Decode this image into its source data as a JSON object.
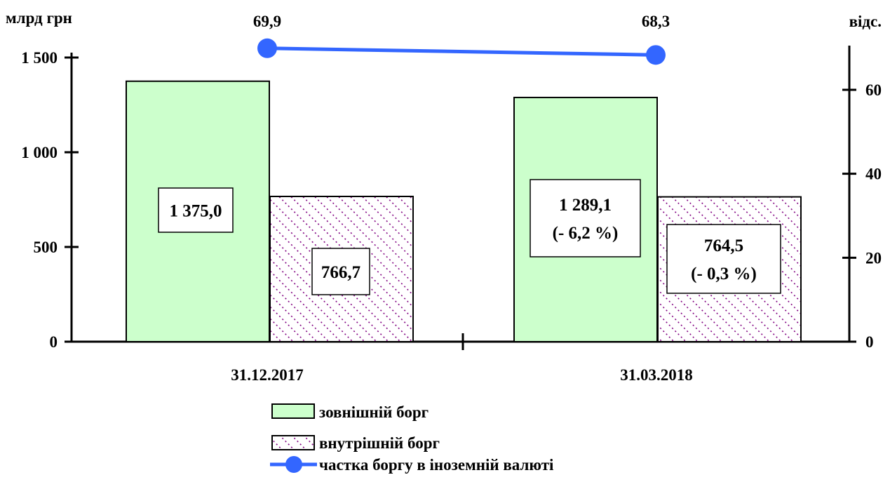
{
  "chart_data": {
    "type": "bar",
    "categories": [
      "31.12.2017",
      "31.03.2018"
    ],
    "y_left_label": "млрд грн",
    "y_right_label": "відс.",
    "y_left_ticks": [
      "0",
      "500",
      "1 000",
      "1 500"
    ],
    "y_left_tick_values": [
      0,
      500,
      1000,
      1500
    ],
    "y_right_ticks": [
      "0",
      "20",
      "40",
      "60"
    ],
    "y_right_tick_values": [
      0,
      20,
      40,
      60
    ],
    "ylim_left": [
      0,
      1500
    ],
    "ylim_right": [
      0,
      60
    ],
    "series": [
      {
        "name": "зовнішній борг",
        "kind": "bar",
        "values": [
          1375.0,
          1289.1
        ],
        "labels": [
          [
            "1 375,0"
          ],
          [
            "1 289,1",
            "(- 6,2 %)"
          ]
        ],
        "color": "#ccffcc",
        "pattern": "solid"
      },
      {
        "name": "внутрішній борг",
        "kind": "bar",
        "values": [
          766.7,
          764.5
        ],
        "labels": [
          [
            "766,7"
          ],
          [
            "764,5",
            "(- 0,3 %)"
          ]
        ],
        "color": "#800080",
        "pattern": "dotted-diagonal"
      },
      {
        "name": "частка боргу в іноземній валюті",
        "kind": "line",
        "axis": "right",
        "values": [
          69.9,
          68.3
        ],
        "labels": [
          "69,9",
          "68,3"
        ],
        "color": "#3366ff"
      }
    ],
    "legend_position": "bottom",
    "grid": false
  }
}
